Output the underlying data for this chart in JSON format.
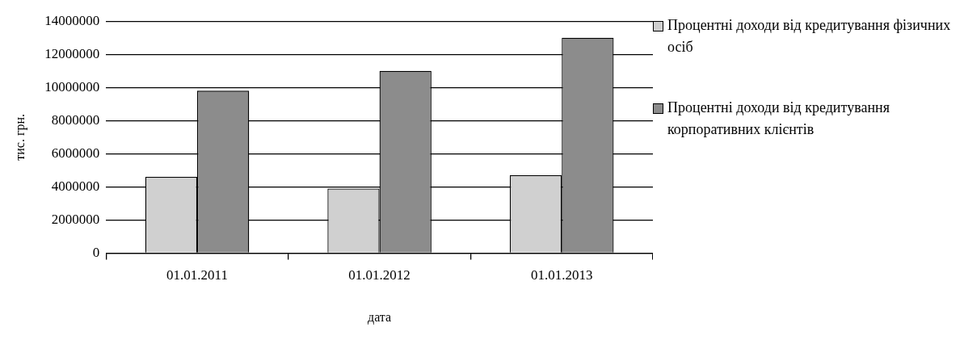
{
  "chart_data": {
    "type": "bar",
    "xlabel": "дата",
    "ylabel": "тис. грн.",
    "categories": [
      "01.01.2011",
      "01.01.2012",
      "01.01.2013"
    ],
    "series": [
      {
        "name": "Процентні доходи від кредитування фізичних осіб",
        "color": "#d0d0d0",
        "values": [
          4600000,
          3900000,
          4700000
        ]
      },
      {
        "name": "Процентні доходи від кредитування корпоративних клієнтів",
        "color": "#8c8c8c",
        "values": [
          9800000,
          11000000,
          13000000
        ]
      }
    ],
    "ylim": [
      0,
      14000000
    ],
    "yticks": [
      0,
      2000000,
      4000000,
      6000000,
      8000000,
      10000000,
      12000000,
      14000000
    ],
    "grid": "y",
    "legend": "right"
  }
}
